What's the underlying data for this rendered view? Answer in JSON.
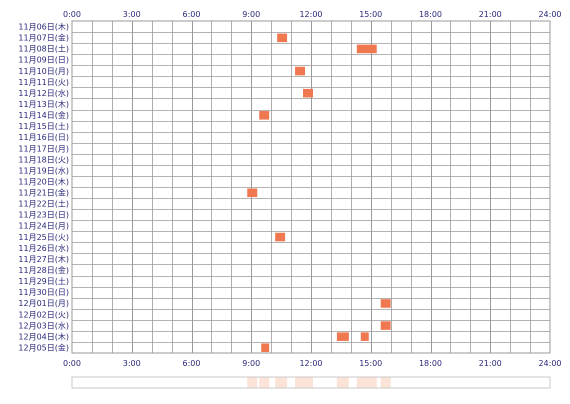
{
  "chart_data": {
    "type": "heatmap",
    "x_axis": {
      "min_hour": 0,
      "max_hour": 24,
      "tick_labels": [
        "0:00",
        "3:00",
        "6:00",
        "9:00",
        "12:00",
        "15:00",
        "18:00",
        "21:00",
        "24:00"
      ]
    },
    "rows": [
      "11月06日(木)",
      "11月07日(金)",
      "11月08日(土)",
      "11月09日(日)",
      "11月10日(月)",
      "11月11日(火)",
      "11月12日(水)",
      "11月13日(木)",
      "11月14日(金)",
      "11月15日(土)",
      "11月16日(日)",
      "11月17日(月)",
      "11月18日(火)",
      "11月19日(水)",
      "11月20日(木)",
      "11月21日(金)",
      "11月22日(土)",
      "11月23日(日)",
      "11月24日(月)",
      "11月25日(火)",
      "11月26日(水)",
      "11月27日(木)",
      "11月28日(金)",
      "11月29日(土)",
      "11月30日(日)",
      "12月01日(月)",
      "12月02日(火)",
      "12月03日(水)",
      "12月04日(木)",
      "12月05日(金)"
    ],
    "activity": [
      {
        "row": 1,
        "start": 10.3,
        "end": 10.8
      },
      {
        "row": 2,
        "start": 14.3,
        "end": 15.3
      },
      {
        "row": 4,
        "start": 11.2,
        "end": 11.7
      },
      {
        "row": 6,
        "start": 11.6,
        "end": 12.1
      },
      {
        "row": 8,
        "start": 9.4,
        "end": 9.9
      },
      {
        "row": 15,
        "start": 8.8,
        "end": 9.3
      },
      {
        "row": 19,
        "start": 10.2,
        "end": 10.7
      },
      {
        "row": 25,
        "start": 15.5,
        "end": 16.0
      },
      {
        "row": 27,
        "start": 15.5,
        "end": 16.0
      },
      {
        "row": 28,
        "start": 13.3,
        "end": 13.9
      },
      {
        "row": 28,
        "start": 14.5,
        "end": 14.9
      },
      {
        "row": 29,
        "start": 9.5,
        "end": 9.9
      }
    ],
    "summary_segments": [
      {
        "start": 8.8,
        "end": 9.3
      },
      {
        "start": 9.4,
        "end": 9.9
      },
      {
        "start": 10.2,
        "end": 10.8
      },
      {
        "start": 11.2,
        "end": 12.1
      },
      {
        "start": 13.3,
        "end": 13.9
      },
      {
        "start": 14.3,
        "end": 15.3
      },
      {
        "start": 15.5,
        "end": 16.0
      }
    ],
    "colors": {
      "bar": "#f07850",
      "grid": "#9a9a9a",
      "label": "#2a2a7a",
      "summary_fill": "#fbe3d8",
      "summary_border": "#c8c8c8"
    }
  }
}
